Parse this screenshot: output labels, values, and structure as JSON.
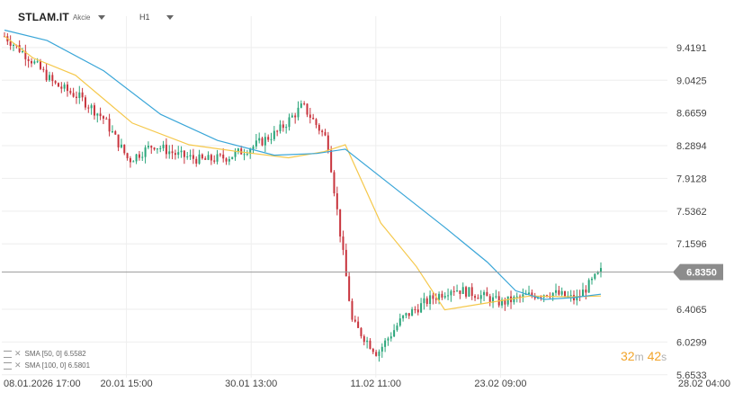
{
  "header": {
    "symbol": "STLAM.IT",
    "instrument_type": "Akcie",
    "timeframe": "H1"
  },
  "indicators": [
    {
      "label": "SMA [50, 0] 6.5582",
      "color": "#f5c84b"
    },
    {
      "label": "SMA [100, 0] 6.5801",
      "color": "#3aa6d8"
    }
  ],
  "timer": {
    "minutes": "32",
    "minutes_unit": "m",
    "seconds": "42",
    "seconds_unit": "s"
  },
  "colors": {
    "up": "#2aa57a",
    "down": "#c8343d",
    "sma50": "#f5c84b",
    "sma100": "#3aa6d8",
    "grid": "#eeeeee",
    "current_line": "#999999",
    "price_tag": "#8c8c8c"
  },
  "chart_data": {
    "type": "candlestick",
    "instrument": "STLAM.IT",
    "timeframe": "H1",
    "ylim": [
      5.62,
      9.78
    ],
    "y_tick_labels": [
      "9.4191",
      "9.0425",
      "8.6659",
      "8.2894",
      "7.9128",
      "7.5362",
      "7.1596",
      "6.4065",
      "6.0299",
      "5.6533"
    ],
    "x_tick_labels": [
      "08.01.2026 17:00",
      "20.01 15:00",
      "30.01 13:00",
      "11.02 11:00",
      "23.02 09:00",
      "28.02 04:00"
    ],
    "current_price": "6.8350",
    "ohlc_anchors": [
      {
        "date": "08.01.2026",
        "close": 9.55
      },
      {
        "date": "09.01",
        "close": 9.3
      },
      {
        "date": "12.01",
        "close": 9.0
      },
      {
        "date": "14.01",
        "close": 8.85
      },
      {
        "date": "16.01",
        "close": 8.6
      },
      {
        "date": "19.01",
        "close": 8.12
      },
      {
        "date": "20.01",
        "close": 8.3
      },
      {
        "date": "22.01",
        "close": 8.18
      },
      {
        "date": "26.01",
        "close": 8.12
      },
      {
        "date": "29.01",
        "close": 8.16
      },
      {
        "date": "30.01",
        "close": 8.28
      },
      {
        "date": "02.02",
        "close": 8.45
      },
      {
        "date": "03.02",
        "close": 8.75
      },
      {
        "date": "04.02",
        "close": 8.35
      },
      {
        "date": "05.02",
        "close": 6.25
      },
      {
        "date": "06.02",
        "close": 5.9
      },
      {
        "date": "09.02",
        "close": 6.3
      },
      {
        "date": "11.02",
        "close": 6.5
      },
      {
        "date": "13.02",
        "close": 6.65
      },
      {
        "date": "17.02",
        "close": 6.58
      },
      {
        "date": "20.02",
        "close": 6.48
      },
      {
        "date": "23.02",
        "close": 6.56
      },
      {
        "date": "25.02",
        "close": 6.6
      },
      {
        "date": "26.02",
        "close": 6.52
      },
      {
        "date": "27.02",
        "close": 6.84
      }
    ],
    "series": [
      {
        "name": "SMA [50, 0]",
        "last": 6.5582,
        "points": [
          [
            0,
            9.55
          ],
          [
            0.04,
            9.3
          ],
          [
            0.1,
            9.1
          ],
          [
            0.18,
            8.55
          ],
          [
            0.26,
            8.3
          ],
          [
            0.33,
            8.22
          ],
          [
            0.4,
            8.15
          ],
          [
            0.45,
            8.22
          ],
          [
            0.48,
            8.3
          ],
          [
            0.53,
            7.4
          ],
          [
            0.58,
            6.9
          ],
          [
            0.62,
            6.4
          ],
          [
            0.68,
            6.48
          ],
          [
            0.74,
            6.56
          ],
          [
            0.8,
            6.55
          ],
          [
            0.84,
            6.56
          ]
        ]
      },
      {
        "name": "SMA [100, 0]",
        "last": 6.5801,
        "points": [
          [
            0,
            9.62
          ],
          [
            0.06,
            9.5
          ],
          [
            0.14,
            9.15
          ],
          [
            0.22,
            8.65
          ],
          [
            0.3,
            8.35
          ],
          [
            0.38,
            8.18
          ],
          [
            0.44,
            8.2
          ],
          [
            0.48,
            8.25
          ],
          [
            0.55,
            7.8
          ],
          [
            0.62,
            7.35
          ],
          [
            0.68,
            6.95
          ],
          [
            0.72,
            6.62
          ],
          [
            0.76,
            6.52
          ],
          [
            0.8,
            6.54
          ],
          [
            0.84,
            6.58
          ]
        ]
      }
    ],
    "grid": true,
    "legend_placement": "bottom-left"
  }
}
